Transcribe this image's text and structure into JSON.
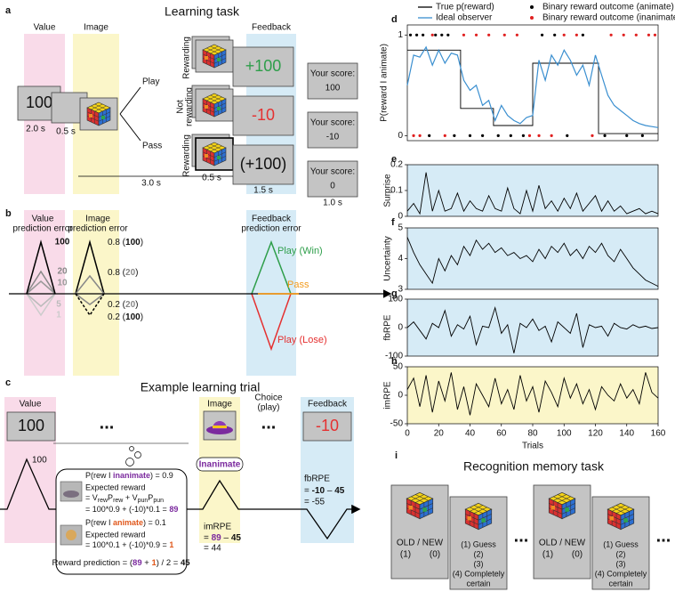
{
  "panel_a": {
    "label": "a",
    "title": "Learning task",
    "value_header": "Value",
    "image_header": "Image",
    "feedback_header": "Feedback",
    "value_stimulus": "100",
    "durations": [
      "2.0 s",
      "0.5 s",
      "3.0 s",
      "0.5 s",
      "1.5 s",
      "1.0 s"
    ],
    "choices": [
      "Play",
      "Pass"
    ],
    "outcomes": [
      [
        "Rewarding"
      ],
      [
        "Not",
        "rewarding"
      ],
      [
        "Rewarding"
      ]
    ],
    "feedback": [
      "+100",
      "-10",
      "(+100)"
    ],
    "score_label": "Your score:",
    "scores": [
      "100",
      "-10",
      "0"
    ]
  },
  "panel_b": {
    "label": "b",
    "value_header": [
      "Value",
      "prediction error"
    ],
    "image_header": [
      "Image",
      "prediction error"
    ],
    "feedback_header": [
      "Feedback",
      "prediction error"
    ],
    "value_levels": [
      "100",
      "20",
      "10",
      "5",
      "1"
    ],
    "image_levels": [
      [
        "0.8 (",
        "100",
        ")"
      ],
      [
        "0.8 (",
        "20",
        ")"
      ],
      [
        "0.2 (",
        "20",
        ")"
      ],
      [
        "0.2 (",
        "100",
        ")"
      ]
    ],
    "outcomes": [
      "Play (Win)",
      "Pass",
      "Play (Lose)"
    ]
  },
  "panel_c": {
    "label": "c",
    "title": "Example learning trial",
    "value_header": "Value",
    "value_stimulus": "100",
    "ellipsis": "...",
    "image_header": "Image",
    "choice_header": [
      "Choice",
      "(play)"
    ],
    "feedback_header": "Feedback",
    "feedback": "-10",
    "value_peak": "100",
    "image_category": "Inanimate",
    "belief": {
      "inanimate_prob": [
        "P(rew I ",
        "inanimate",
        ") = 0.9"
      ],
      "expected_header": "Expected reward",
      "formula": [
        "= V",
        "rew",
        "P",
        "rew",
        " + V",
        "pun",
        "P",
        "pun"
      ],
      "inanimate_calc": [
        "= 100*0.9 + (-10)*0.1 = ",
        "89"
      ],
      "animate_prob": [
        "P(rew I ",
        "animate",
        ") = 0.1"
      ],
      "animate_calc": [
        "= 100*0.1 + (-10)*0.9 = ",
        "1"
      ],
      "prediction": [
        "Reward prediction = (",
        "89",
        " + ",
        "1",
        ") / 2 = ",
        "45"
      ]
    },
    "imrpe": [
      "imRPE",
      [
        "= ",
        "89",
        " – ",
        "45"
      ],
      "= 44"
    ],
    "fbrpe": [
      "fbRPE",
      [
        "= ",
        "-10",
        " – ",
        "45"
      ],
      "= -55"
    ]
  },
  "panel_i": {
    "label": "i",
    "title": "Recognition memory task",
    "old_new": "OLD / NEW",
    "old_new_keys": [
      "(1)",
      "(0)"
    ],
    "confidence": [
      "(1) Guess",
      "(2)",
      "(3)",
      "(4) Completely",
      "certain"
    ],
    "ellipsis": "..."
  },
  "chart_data": [
    {
      "type": "line",
      "panel": "d",
      "ylabel": "P(reward I animate)",
      "xlim": [
        0,
        160
      ],
      "ylim": [
        -0.05,
        1.1
      ],
      "yticks": [
        0,
        1
      ],
      "legend": "top",
      "series": [
        {
          "name": "True p(reward)",
          "color": "#000000",
          "type": "line",
          "x": [
            0,
            34,
            34,
            55,
            55,
            80,
            80,
            122,
            122,
            160
          ],
          "values": [
            0.85,
            0.85,
            0.27,
            0.27,
            0.1,
            0.1,
            0.72,
            0.72,
            0.02,
            0.02
          ]
        },
        {
          "name": "Ideal observer",
          "color": "#3a8fd0",
          "type": "line",
          "x": [
            0,
            4,
            8,
            12,
            16,
            20,
            24,
            28,
            32,
            36,
            40,
            44,
            48,
            52,
            56,
            60,
            64,
            68,
            72,
            76,
            80,
            84,
            88,
            92,
            96,
            100,
            104,
            108,
            112,
            116,
            120,
            124,
            128,
            132,
            136,
            140,
            144,
            148,
            152,
            156,
            160
          ],
          "values": [
            0.5,
            0.8,
            0.78,
            0.88,
            0.7,
            0.85,
            0.72,
            0.82,
            0.8,
            0.55,
            0.45,
            0.5,
            0.3,
            0.35,
            0.15,
            0.3,
            0.2,
            0.15,
            0.12,
            0.18,
            0.2,
            0.75,
            0.55,
            0.8,
            0.7,
            0.85,
            0.75,
            0.6,
            0.7,
            0.5,
            0.8,
            0.6,
            0.4,
            0.3,
            0.25,
            0.2,
            0.15,
            0.12,
            0.1,
            0.09,
            0.08
          ]
        },
        {
          "name": "Binary reward outcome (animate)",
          "color": "#000000",
          "type": "scatter",
          "x": [
            2,
            6,
            10,
            14,
            18,
            22,
            26,
            30,
            40,
            48,
            58,
            66,
            74,
            86,
            94,
            102,
            112,
            126,
            140,
            150
          ],
          "values": [
            1,
            1,
            1,
            0,
            1,
            1,
            1,
            0,
            0,
            0,
            0,
            0,
            0,
            1,
            1,
            0,
            1,
            0,
            0,
            0
          ]
        },
        {
          "name": "Binary reward outcome (inanimate)",
          "color": "#e02020",
          "type": "scatter",
          "x": [
            4,
            8,
            16,
            24,
            36,
            44,
            52,
            62,
            70,
            78,
            84,
            92,
            100,
            108,
            118,
            130,
            138,
            146,
            154,
            158
          ],
          "values": [
            0,
            0,
            1,
            0,
            1,
            1,
            1,
            1,
            1,
            0,
            0,
            0,
            1,
            1,
            0,
            1,
            1,
            1,
            1,
            1
          ]
        }
      ]
    },
    {
      "type": "line",
      "panel": "e",
      "ylabel": "Surprise",
      "xlim": [
        0,
        160
      ],
      "ylim": [
        0,
        0.2
      ],
      "yticks": [
        0,
        0.1,
        0.2
      ],
      "background": "#d6ebf6",
      "x": [
        0,
        4,
        8,
        12,
        16,
        20,
        24,
        28,
        32,
        36,
        40,
        44,
        48,
        52,
        56,
        60,
        64,
        68,
        72,
        76,
        80,
        84,
        88,
        92,
        96,
        100,
        104,
        108,
        112,
        116,
        120,
        124,
        128,
        132,
        136,
        140,
        144,
        148,
        152,
        156,
        160
      ],
      "series": [
        {
          "color": "#000000",
          "values": [
            0.02,
            0.05,
            0.01,
            0.17,
            0.02,
            0.1,
            0.02,
            0.03,
            0.09,
            0.02,
            0.06,
            0.03,
            0.02,
            0.08,
            0.03,
            0.02,
            0.11,
            0.03,
            0.01,
            0.1,
            0.02,
            0.12,
            0.03,
            0.06,
            0.02,
            0.07,
            0.03,
            0.09,
            0.02,
            0.05,
            0.08,
            0.02,
            0.06,
            0.02,
            0.04,
            0.01,
            0.02,
            0.03,
            0.01,
            0.02,
            0.01
          ]
        }
      ]
    },
    {
      "type": "line",
      "panel": "f",
      "ylabel": "Uncertainty",
      "xlim": [
        0,
        160
      ],
      "ylim": [
        3,
        5
      ],
      "yticks": [
        3,
        4,
        5
      ],
      "background": "#d6ebf6",
      "x": [
        0,
        4,
        8,
        12,
        16,
        20,
        24,
        28,
        32,
        36,
        40,
        44,
        48,
        52,
        56,
        60,
        64,
        68,
        72,
        76,
        80,
        84,
        88,
        92,
        96,
        100,
        104,
        108,
        112,
        116,
        120,
        124,
        128,
        132,
        136,
        140,
        144,
        148,
        152,
        156,
        160
      ],
      "series": [
        {
          "color": "#000000",
          "values": [
            4.7,
            4.2,
            3.8,
            3.5,
            3.2,
            4.0,
            3.6,
            4.1,
            3.8,
            4.4,
            4.1,
            4.6,
            4.3,
            4.5,
            4.2,
            4.35,
            4.1,
            4.2,
            4.0,
            4.1,
            3.9,
            4.3,
            4.0,
            4.4,
            4.2,
            4.5,
            4.1,
            4.3,
            4.0,
            4.4,
            4.2,
            4.5,
            4.1,
            3.9,
            4.3,
            4.0,
            3.7,
            3.5,
            3.3,
            3.2,
            3.1
          ]
        }
      ]
    },
    {
      "type": "line",
      "panel": "g",
      "ylabel": "fbRPE",
      "xlim": [
        0,
        160
      ],
      "ylim": [
        -100,
        100
      ],
      "yticks": [
        -100,
        0,
        100
      ],
      "background": "#d6ebf6",
      "x": [
        0,
        4,
        8,
        12,
        16,
        20,
        24,
        28,
        32,
        36,
        40,
        44,
        48,
        52,
        56,
        60,
        64,
        68,
        72,
        76,
        80,
        84,
        88,
        92,
        96,
        100,
        104,
        108,
        112,
        116,
        120,
        124,
        128,
        132,
        136,
        140,
        144,
        148,
        152,
        156,
        160
      ],
      "series": [
        {
          "color": "#000000",
          "values": [
            0,
            20,
            -10,
            -40,
            15,
            0,
            60,
            -30,
            10,
            -5,
            40,
            -60,
            5,
            0,
            70,
            -20,
            10,
            -90,
            15,
            0,
            30,
            -10,
            5,
            -50,
            20,
            0,
            -20,
            50,
            -70,
            10,
            0,
            5,
            -30,
            15,
            0,
            -5,
            10,
            0,
            5,
            -3,
            0
          ]
        }
      ]
    },
    {
      "type": "line",
      "panel": "h",
      "ylabel": "imRPE",
      "xlabel": "Trials",
      "xlim": [
        0,
        160
      ],
      "ylim": [
        -50,
        50
      ],
      "yticks": [
        -50,
        0,
        50
      ],
      "xticks": [
        0,
        20,
        40,
        60,
        80,
        100,
        120,
        140,
        160
      ],
      "background": "#fbf6c9",
      "x": [
        0,
        4,
        8,
        12,
        16,
        20,
        24,
        28,
        32,
        36,
        40,
        44,
        48,
        52,
        56,
        60,
        64,
        68,
        72,
        76,
        80,
        84,
        88,
        92,
        96,
        100,
        104,
        108,
        112,
        116,
        120,
        124,
        128,
        132,
        136,
        140,
        144,
        148,
        152,
        156,
        160
      ],
      "series": [
        {
          "color": "#000000",
          "values": [
            10,
            30,
            -20,
            35,
            -30,
            25,
            -10,
            40,
            -25,
            15,
            -35,
            20,
            0,
            -20,
            30,
            -15,
            10,
            -25,
            35,
            -10,
            15,
            -30,
            25,
            5,
            -20,
            30,
            -5,
            20,
            -15,
            10,
            -25,
            15,
            0,
            -10,
            20,
            -5,
            10,
            -15,
            40,
            5,
            -5
          ]
        }
      ]
    }
  ]
}
